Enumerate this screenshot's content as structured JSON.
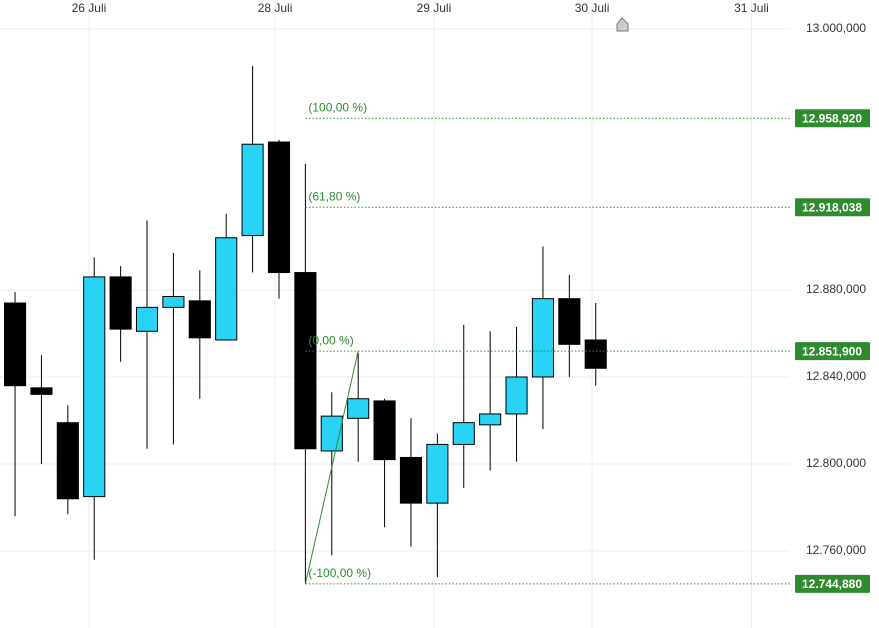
{
  "chart_data": {
    "type": "candlestick",
    "x": [
      0,
      1,
      2,
      3,
      4,
      5,
      6,
      7,
      8,
      9,
      10,
      11,
      12,
      13,
      14,
      15,
      16,
      17,
      18,
      19,
      20,
      21,
      22
    ],
    "candles": [
      {
        "open": 12.874,
        "high": 12.879,
        "low": 12.776,
        "close": 12.836
      },
      {
        "open": 12.835,
        "high": 12.85,
        "low": 12.8,
        "close": 12.832
      },
      {
        "open": 12.819,
        "high": 12.827,
        "low": 12.777,
        "close": 12.784
      },
      {
        "open": 12.785,
        "high": 12.895,
        "low": 12.756,
        "close": 12.886
      },
      {
        "open": 12.886,
        "high": 12.891,
        "low": 12.847,
        "close": 12.862
      },
      {
        "open": 12.861,
        "high": 12.912,
        "low": 12.807,
        "close": 12.872
      },
      {
        "open": 12.872,
        "high": 12.897,
        "low": 12.809,
        "close": 12.877
      },
      {
        "open": 12.875,
        "high": 12.889,
        "low": 12.83,
        "close": 12.858
      },
      {
        "open": 12.857,
        "high": 12.915,
        "low": 12.857,
        "close": 12.904
      },
      {
        "open": 12.905,
        "high": 12.983,
        "low": 12.888,
        "close": 12.947
      },
      {
        "open": 12.948,
        "high": 12.949,
        "low": 12.876,
        "close": 12.888
      },
      {
        "open": 12.888,
        "high": 12.938,
        "low": 12.745,
        "close": 12.807
      },
      {
        "open": 12.806,
        "high": 12.833,
        "low": 12.758,
        "close": 12.822
      },
      {
        "open": 12.821,
        "high": 12.851,
        "low": 12.801,
        "close": 12.83
      },
      {
        "open": 12.829,
        "high": 12.83,
        "low": 12.771,
        "close": 12.802
      },
      {
        "open": 12.803,
        "high": 12.821,
        "low": 12.762,
        "close": 12.782
      },
      {
        "open": 12.782,
        "high": 12.814,
        "low": 12.748,
        "close": 12.809
      },
      {
        "open": 12.809,
        "high": 12.864,
        "low": 12.789,
        "close": 12.819
      },
      {
        "open": 12.818,
        "high": 12.861,
        "low": 12.797,
        "close": 12.823
      },
      {
        "open": 12.823,
        "high": 12.863,
        "low": 12.801,
        "close": 12.84
      },
      {
        "open": 12.84,
        "high": 12.9,
        "low": 12.816,
        "close": 12.876
      },
      {
        "open": 12.876,
        "high": 12.887,
        "low": 12.84,
        "close": 12.855
      },
      {
        "open": 12.857,
        "high": 12.874,
        "low": 12.836,
        "close": 12.844
      }
    ],
    "up_color": "#29d3f5",
    "down_color": "#000000",
    "xlim": [
      -0.57,
      29.36
    ],
    "xticks": [
      {
        "value": 2.8,
        "label": "26 Juli"
      },
      {
        "value": 9.85,
        "label": "28 Juli"
      },
      {
        "value": 15.87,
        "label": "29 Juli"
      },
      {
        "value": 21.86,
        "label": "30 Juli"
      },
      {
        "value": 27.9,
        "label": "31 Juli"
      }
    ],
    "ylim": [
      12.7246,
      13.0133
    ],
    "yticks": [
      {
        "value": 13.0,
        "label": "13.000,000"
      },
      {
        "value": 12.88,
        "label": "12.880,000"
      },
      {
        "value": 12.84,
        "label": "12.840,000"
      },
      {
        "value": 12.8,
        "label": "12.800,000"
      },
      {
        "value": 12.76,
        "label": "12.760,000"
      }
    ],
    "grid": true,
    "fib": {
      "color": "#2e8b2e",
      "start_x": 11,
      "end_x": 13,
      "levels": [
        {
          "label": "(100,00 %)",
          "value": 12.95892,
          "value_label": "12.958,920"
        },
        {
          "label": "(61,80 %)",
          "value": 12.918038,
          "value_label": "12.918,038"
        },
        {
          "label": "(0,00 %)",
          "value": 12.8519,
          "value_label": "12.851,900"
        },
        {
          "label": "(-100,00 %)",
          "value": 12.74488,
          "value_label": "12.744,880"
        }
      ]
    }
  }
}
